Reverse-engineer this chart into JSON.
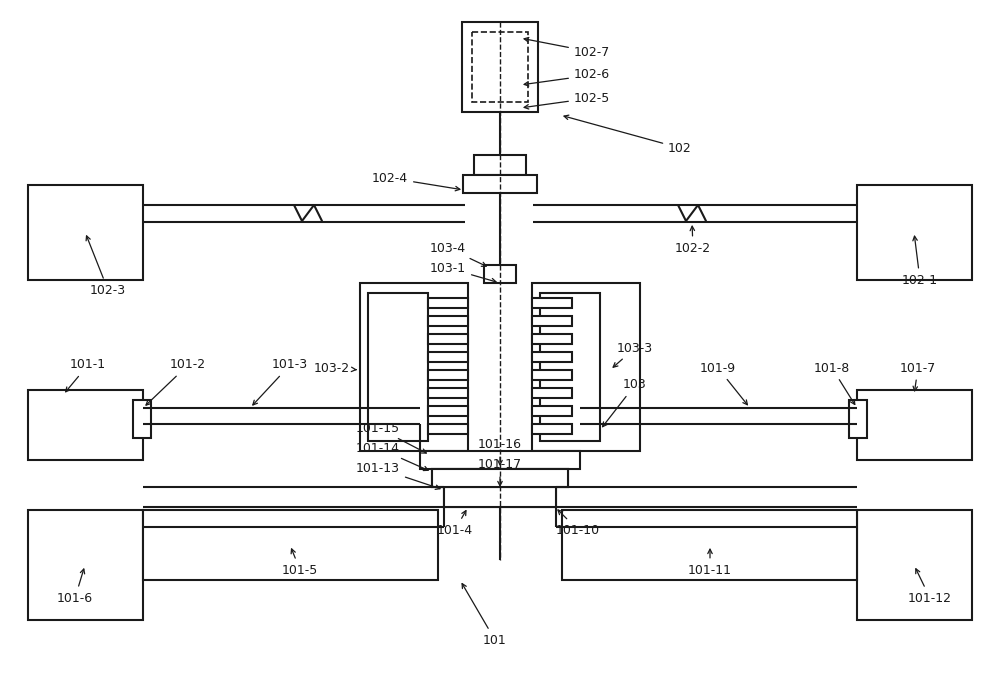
{
  "bg": "#ffffff",
  "lc": "#1a1a1a",
  "lw": 1.5,
  "fw": 10.0,
  "fh": 6.96,
  "dpi": 100
}
